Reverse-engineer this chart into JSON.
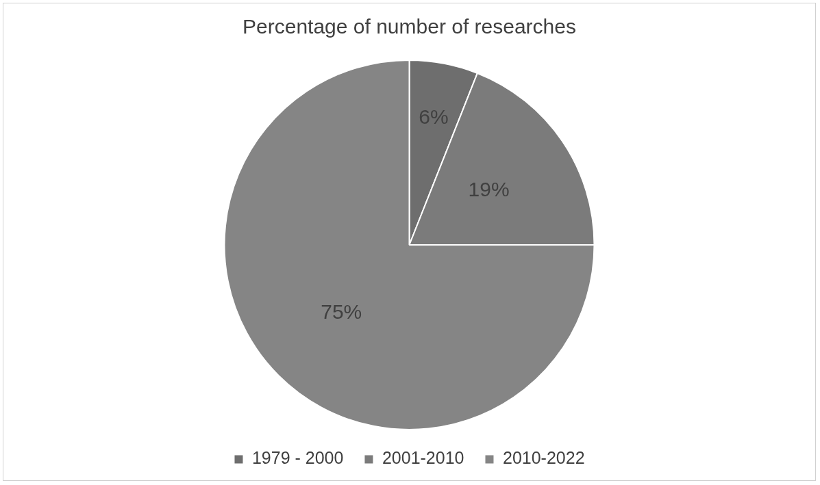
{
  "chart_data": {
    "type": "pie",
    "title": "Percentage of number of researches",
    "categories": [
      "1979 - 2000",
      "2001-2010",
      "2010-2022"
    ],
    "values": [
      6,
      19,
      75
    ],
    "colors": [
      "#6e6e6e",
      "#7b7b7b",
      "#858585"
    ],
    "value_labels": [
      "6%",
      "19%",
      "75%"
    ],
    "legend": "bottom"
  }
}
